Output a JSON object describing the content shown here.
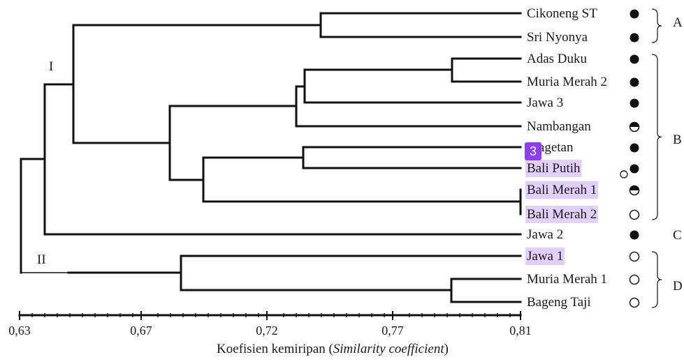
{
  "leaves": [
    {
      "label": "Cikoneng ST",
      "dot": "filled",
      "highlight": false
    },
    {
      "label": "Sri Nyonya",
      "dot": "filled",
      "highlight": false
    },
    {
      "label": "Adas Duku",
      "dot": "filled",
      "highlight": false
    },
    {
      "label": "Muria Merah 2",
      "dot": "filled",
      "highlight": false
    },
    {
      "label": "Jawa 3",
      "dot": "filled",
      "highlight": false
    },
    {
      "label": "Nambangan",
      "dot": "half",
      "highlight": false
    },
    {
      "label": "Magetan",
      "dot": "filled",
      "highlight": false
    },
    {
      "label": "Bali Putih",
      "dot": "filled",
      "highlight": true
    },
    {
      "label": "Bali Merah 1",
      "dot": "half",
      "highlight": true
    },
    {
      "label": "Bali Merah 2",
      "dot": "open",
      "highlight": true
    },
    {
      "label": "Jawa 2",
      "dot": "filled",
      "highlight": false
    },
    {
      "label": "Jawa 1",
      "dot": "open",
      "highlight": true
    },
    {
      "label": "Muria Merah 1",
      "dot": "open",
      "highlight": false
    },
    {
      "label": "Bageng Taji",
      "dot": "open",
      "highlight": false
    }
  ],
  "groups": [
    {
      "label": "A",
      "from": 0,
      "to": 1
    },
    {
      "label": "B",
      "from": 2,
      "to": 9
    },
    {
      "label": "C",
      "from": 10,
      "to": 10
    },
    {
      "label": "D",
      "from": 11,
      "to": 13
    }
  ],
  "clusters": [
    "I",
    "II"
  ],
  "axis": {
    "ticks": [
      "0,63",
      "0,67",
      "0,72",
      "0,77",
      "0,81"
    ],
    "label_plain": "Koefisien kemiripan (",
    "label_italic": "Similarity coefficient",
    "label_close": ")"
  },
  "badge": "3",
  "colors": {
    "highlight": "#e2cffb",
    "badge": "#8e3df0"
  }
}
